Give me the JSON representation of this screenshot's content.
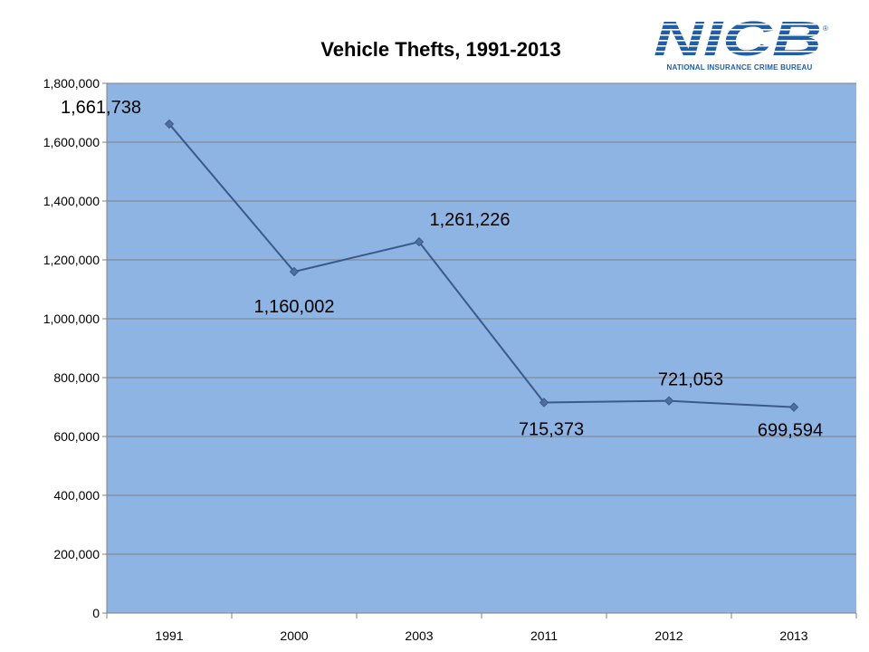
{
  "logo": {
    "wordmark": "NICB",
    "tagline": "NATIONAL INSURANCE CRIME BUREAU",
    "registered_mark": "®"
  },
  "colors": {
    "plot_background": "#8eb4e3",
    "gridline": "#7f7f7f",
    "series_line": "#3a5a8c",
    "marker_fill": "#4f6fa0",
    "brand_blue": "#1f5fa8"
  },
  "chart_data": {
    "type": "line",
    "title": "Vehicle Thefts, 1991-2013",
    "xlabel": "",
    "ylabel": "",
    "categories": [
      "1991",
      "2000",
      "2003",
      "2011",
      "2012",
      "2013"
    ],
    "series": [
      {
        "name": "Vehicle Thefts",
        "values": [
          1661738,
          1160002,
          1261226,
          715373,
          721053,
          699594
        ],
        "data_labels": [
          "1,661,738",
          "1,160,002",
          "1,261,226",
          "715,373",
          "721,053",
          "699,594"
        ],
        "marker": "diamond"
      }
    ],
    "ylim": [
      0,
      1800000
    ],
    "ytick_values": [
      0,
      200000,
      400000,
      600000,
      800000,
      1000000,
      1200000,
      1400000,
      1600000,
      1800000
    ],
    "ytick_labels": [
      "0",
      "200,000",
      "400,000",
      "600,000",
      "800,000",
      "1,000,000",
      "1,200,000",
      "1,400,000",
      "1,600,000",
      "1,800,000"
    ],
    "grid": true,
    "legend": "none"
  }
}
